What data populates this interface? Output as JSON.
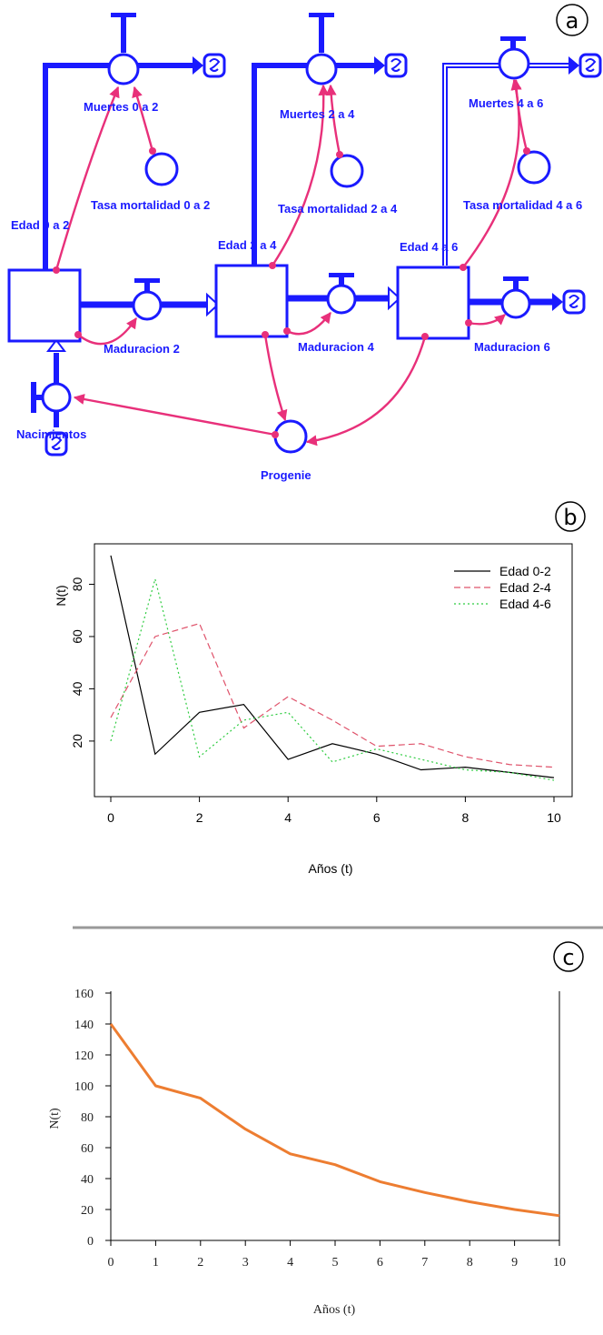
{
  "panels": {
    "a": "a",
    "b": "b",
    "c": "c"
  },
  "diagram": {
    "stocks": [
      "Edad 0 a 2",
      "Edad 2 a 4",
      "Edad 4 a 6"
    ],
    "deaths": [
      "Muertes 0 a 2",
      "Muertes 2 a 4",
      "Muertes 4 a 6"
    ],
    "rates": [
      "Tasa mortalidad 0 a 2",
      "Tasa mortalidad 2 a 4",
      "Tasa mortalidad 4 a 6"
    ],
    "maturations": [
      "Maduracion 2",
      "Maduracion 4",
      "Maduracion 6"
    ],
    "births": "Nacimientos",
    "offspring": "Progenie",
    "colors": {
      "flow": "#1a1aff",
      "link": "#e8307a"
    }
  },
  "chart_data": [
    {
      "type": "line",
      "xlabel": "Años (t)",
      "ylabel": "N(t)",
      "x": [
        0,
        1,
        2,
        3,
        4,
        5,
        6,
        7,
        8,
        9,
        10
      ],
      "xticks": [
        "0",
        "2",
        "4",
        "6",
        "8",
        "10"
      ],
      "yticks": [
        "20",
        "40",
        "60",
        "80"
      ],
      "xlim": [
        0,
        10
      ],
      "ylim": [
        5,
        92
      ],
      "legend": "top-right",
      "series": [
        {
          "name": "Edad 0-2",
          "color": "#000000",
          "style": "solid",
          "values": [
            91,
            15,
            31,
            34,
            13,
            19,
            15,
            9,
            10,
            8,
            6
          ]
        },
        {
          "name": "Edad 2-4",
          "color": "#df536b",
          "style": "dashed",
          "values": [
            29,
            60,
            65,
            25,
            37,
            28,
            18,
            19,
            14,
            11,
            10
          ]
        },
        {
          "name": "Edad 4-6",
          "color": "#2ecc40",
          "style": "dotted",
          "values": [
            20,
            82,
            14,
            28,
            31,
            12,
            17,
            13,
            9,
            8,
            5
          ]
        }
      ]
    },
    {
      "type": "line",
      "xlabel": "Años (t)",
      "ylabel": "N(t)",
      "x": [
        0,
        1,
        2,
        3,
        4,
        5,
        6,
        7,
        8,
        9,
        10
      ],
      "xticks": [
        "0",
        "1",
        "2",
        "3",
        "4",
        "5",
        "6",
        "7",
        "8",
        "9",
        "10"
      ],
      "yticks": [
        "0",
        "20",
        "40",
        "60",
        "80",
        "100",
        "120",
        "140",
        "160"
      ],
      "xlim": [
        0,
        10
      ],
      "ylim": [
        0,
        160
      ],
      "grid": false,
      "series": [
        {
          "color": "#ed7d31",
          "values": [
            140,
            100,
            92,
            72,
            56,
            49,
            38,
            31,
            25,
            20,
            16
          ]
        }
      ]
    }
  ]
}
